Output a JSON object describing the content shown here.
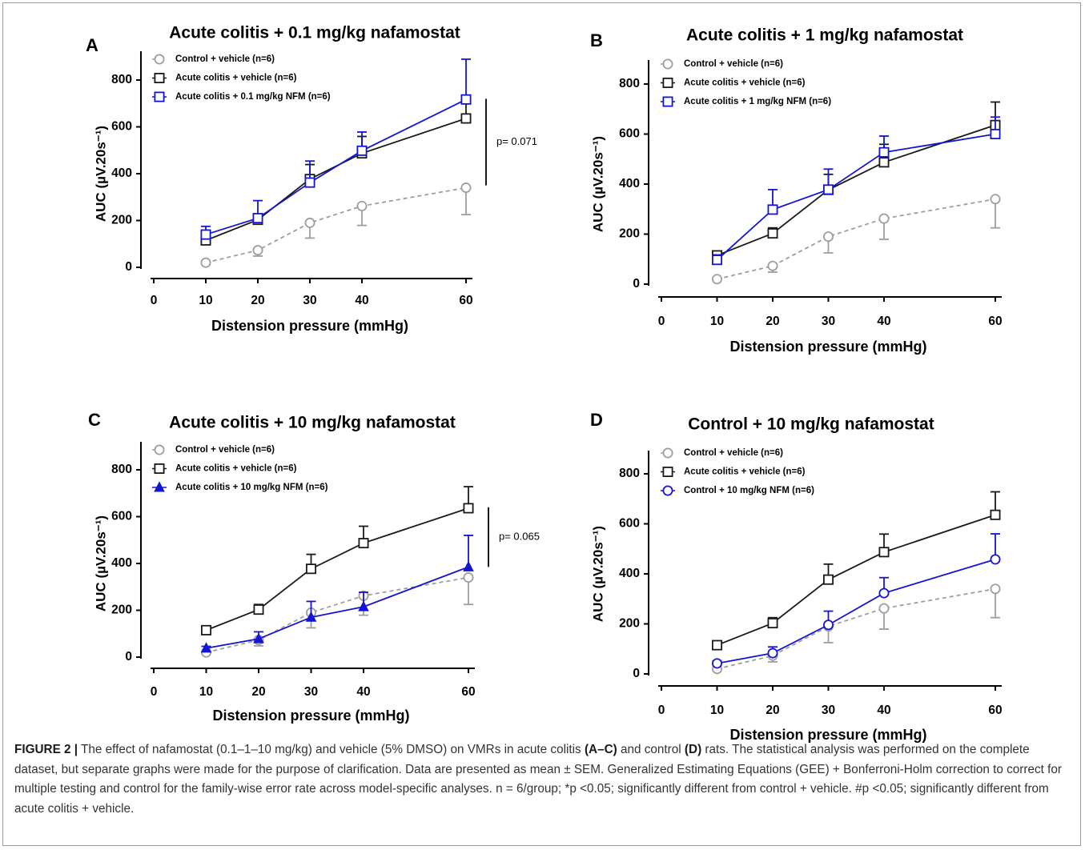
{
  "colors": {
    "control_vehicle": "#9e9e9e",
    "colitis_vehicle": "#1a1a1a",
    "treatment": "#1414d2"
  },
  "chart_data": [
    {
      "type": "line",
      "panel": "A",
      "title": "Acute colitis + 0.1 mg/kg nafamostat",
      "xlabel": "Distension pressure (mmHg)",
      "ylabel": "AUC (µV.20s⁻¹)",
      "xlim": [
        0,
        60
      ],
      "ylim": [
        0,
        800
      ],
      "xticks": [
        0,
        10,
        20,
        30,
        40,
        60
      ],
      "yticks": [
        0,
        200,
        400,
        600,
        800
      ],
      "legend_position": "top-left",
      "x": [
        10,
        20,
        30,
        40,
        60
      ],
      "series": [
        {
          "name": "Control + vehicle (n=6)",
          "values": [
            20,
            73,
            190,
            262,
            340
          ],
          "sem": [
            5,
            25,
            65,
            83,
            115
          ],
          "marker": "circle",
          "dashed": true,
          "color": "#9e9e9e"
        },
        {
          "name": "Acute colitis + vehicle (n=6)",
          "values": [
            115,
            203,
            377,
            487,
            636
          ],
          "sem": [
            15,
            22,
            62,
            72,
            92
          ],
          "marker": "square",
          "dashed": false,
          "color": "#1a1a1a"
        },
        {
          "name": "Acute colitis + 0.1 mg/kg NFM (n=6)",
          "values": [
            140,
            210,
            362,
            498,
            717
          ],
          "sem": [
            35,
            75,
            92,
            80,
            172
          ],
          "marker": "square",
          "dashed": false,
          "color": "#1414d2"
        }
      ],
      "annotation": "p= 0.071",
      "bracket": [
        350,
        720
      ]
    },
    {
      "type": "line",
      "panel": "B",
      "title": "Acute colitis + 1 mg/kg nafamostat",
      "xlabel": "Distension pressure (mmHg)",
      "ylabel": "AUC (µV.20s⁻¹)",
      "xlim": [
        0,
        60
      ],
      "ylim": [
        0,
        800
      ],
      "xticks": [
        0,
        10,
        20,
        30,
        40,
        60
      ],
      "yticks": [
        0,
        200,
        400,
        600,
        800
      ],
      "legend_position": "top-left",
      "x": [
        10,
        20,
        30,
        40,
        60
      ],
      "series": [
        {
          "name": "Control + vehicle (n=6)",
          "values": [
            20,
            73,
            190,
            262,
            340
          ],
          "sem": [
            5,
            25,
            65,
            83,
            115
          ],
          "marker": "circle",
          "dashed": true,
          "color": "#9e9e9e"
        },
        {
          "name": "Acute colitis + vehicle (n=6)",
          "values": [
            115,
            203,
            377,
            487,
            636
          ],
          "sem": [
            15,
            22,
            62,
            72,
            92
          ],
          "marker": "square",
          "dashed": false,
          "color": "#1a1a1a"
        },
        {
          "name": "Acute colitis + 1 mg/kg NFM (n=6)",
          "values": [
            97,
            298,
            378,
            527,
            600
          ],
          "sem": [
            20,
            80,
            82,
            65,
            68
          ],
          "marker": "square",
          "dashed": false,
          "color": "#1414d2"
        }
      ]
    },
    {
      "type": "line",
      "panel": "C",
      "title": "Acute colitis + 10 mg/kg nafamostat",
      "xlabel": "Distension pressure (mmHg)",
      "ylabel": "AUC (µV.20s⁻¹)",
      "xlim": [
        0,
        60
      ],
      "ylim": [
        0,
        800
      ],
      "xticks": [
        0,
        10,
        20,
        30,
        40,
        60
      ],
      "yticks": [
        0,
        200,
        400,
        600,
        800
      ],
      "legend_position": "top-left",
      "x": [
        10,
        20,
        30,
        40,
        60
      ],
      "series": [
        {
          "name": "Control + vehicle (n=6)",
          "values": [
            20,
            73,
            190,
            262,
            340
          ],
          "sem": [
            5,
            25,
            65,
            83,
            115
          ],
          "marker": "circle",
          "dashed": true,
          "color": "#9e9e9e"
        },
        {
          "name": "Acute colitis + vehicle (n=6)",
          "values": [
            115,
            203,
            377,
            487,
            636
          ],
          "sem": [
            15,
            22,
            62,
            72,
            92
          ],
          "marker": "square",
          "dashed": false,
          "color": "#1a1a1a"
        },
        {
          "name": "Acute colitis + 10 mg/kg NFM (n=6)",
          "values": [
            38,
            78,
            170,
            215,
            385
          ],
          "sem": [
            8,
            30,
            68,
            62,
            135
          ],
          "marker": "triangle",
          "dashed": false,
          "color": "#1414d2"
        }
      ],
      "annotation": "p= 0.065",
      "bracket": [
        385,
        640
      ]
    },
    {
      "type": "line",
      "panel": "D",
      "title": "Control + 10 mg/kg nafamostat",
      "xlabel": "Distension pressure (mmHg)",
      "ylabel": "AUC (µV.20s⁻¹)",
      "xlim": [
        0,
        60
      ],
      "ylim": [
        0,
        800
      ],
      "xticks": [
        0,
        10,
        20,
        30,
        40,
        60
      ],
      "yticks": [
        0,
        200,
        400,
        600,
        800
      ],
      "legend_position": "top-left",
      "x": [
        10,
        20,
        30,
        40,
        60
      ],
      "series": [
        {
          "name": "Control + vehicle (n=6)",
          "values": [
            20,
            73,
            190,
            262,
            340
          ],
          "sem": [
            5,
            25,
            65,
            83,
            115
          ],
          "marker": "circle",
          "dashed": true,
          "color": "#9e9e9e"
        },
        {
          "name": "Acute colitis + vehicle (n=6)",
          "values": [
            115,
            203,
            377,
            487,
            636
          ],
          "sem": [
            15,
            22,
            62,
            72,
            92
          ],
          "marker": "square",
          "dashed": false,
          "color": "#1a1a1a"
        },
        {
          "name": "Control + 10 mg/kg NFM (n=6)",
          "values": [
            42,
            83,
            196,
            323,
            458
          ],
          "sem": [
            10,
            25,
            55,
            62,
            102
          ],
          "marker": "circle",
          "dashed": false,
          "color": "#1414d2"
        }
      ]
    }
  ],
  "caption": {
    "figure_label": "FIGURE 2 |",
    "text_1": " The effect of nafamostat (0.1–1–10 mg/kg) and vehicle (5% DMSO) on VMRs in acute colitis ",
    "bold_1": "(A–C)",
    "text_2": " and control ",
    "bold_2": "(D)",
    "text_3": " rats. The statistical analysis was performed on the complete dataset, but separate graphs were made for the purpose of clarification. Data are presented as mean ± SEM. Generalized Estimating Equations (GEE) + Bonferroni-Holm correction to correct for multiple testing and control for the family-wise error rate across model-specific analyses. n = 6/group; *p <0.05; significantly different from control + vehicle. #p <0.05; significantly different from acute colitis + vehicle."
  }
}
